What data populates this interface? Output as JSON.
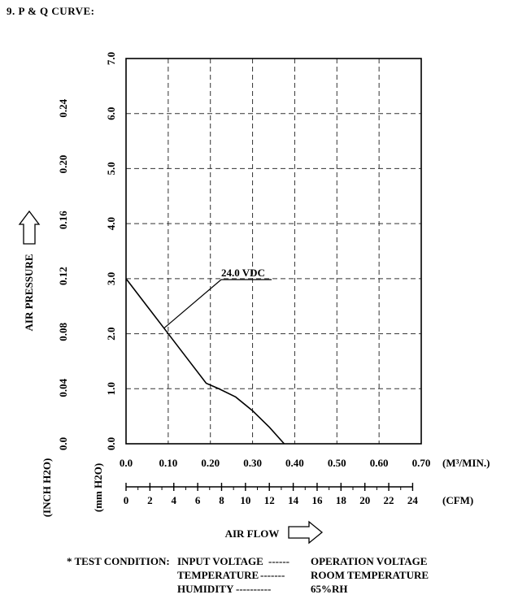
{
  "heading": "9. P & Q CURVE:",
  "chart_data": {
    "type": "line",
    "title": "",
    "xlabel": "AIR FLOW",
    "ylabel": "AIR PRESSURE",
    "x_units": "(M³/MIN.)",
    "x2_units": "(CFM)",
    "y_units_inch": "(INCH H2O)",
    "y_units_mm": "(mm H2O)",
    "xlim": [
      0,
      0.7
    ],
    "ylim": [
      0,
      7.0
    ],
    "x_ticks": [
      "0.0",
      "0.10",
      "0.20",
      "0.30",
      "0.40",
      "0.50",
      "0.60",
      "0.70"
    ],
    "x2_ticks": [
      "0",
      "2",
      "4",
      "6",
      "8",
      "10",
      "12",
      "14",
      "16",
      "18",
      "20",
      "22",
      "24"
    ],
    "x2lim": [
      0,
      24.72
    ],
    "y_ticks_mm": [
      "0.0",
      "1.0",
      "2.0",
      "3.0",
      "4.0",
      "5.0",
      "6.0",
      "7.0"
    ],
    "y_ticks_inch": [
      "0.0",
      "0.04",
      "0.08",
      "0.12",
      "0.16",
      "0.20",
      "0.24"
    ],
    "grid": true,
    "series": [
      {
        "name": "24.0 VDC",
        "x": [
          0.0,
          0.05,
          0.1,
          0.15,
          0.19,
          0.22,
          0.26,
          0.3,
          0.34,
          0.375
        ],
        "y": [
          3.0,
          2.5,
          2.0,
          1.5,
          1.1,
          1.0,
          0.85,
          0.6,
          0.3,
          0.0
        ]
      }
    ],
    "annotation": {
      "text": "24.0 VDC",
      "points_to": {
        "x": 0.09,
        "y": 2.1
      }
    }
  },
  "test_condition": {
    "label": "* TEST CONDITION:",
    "rows": [
      {
        "name": "INPUT VOLTAGE",
        "dash": "------",
        "value": "OPERATION VOLTAGE"
      },
      {
        "name": "TEMPERATURE",
        "dash": "-------",
        "value": "ROOM TEMPERATURE"
      },
      {
        "name": "HUMIDITY",
        "dash": "----------",
        "value": "65%RH"
      }
    ]
  }
}
